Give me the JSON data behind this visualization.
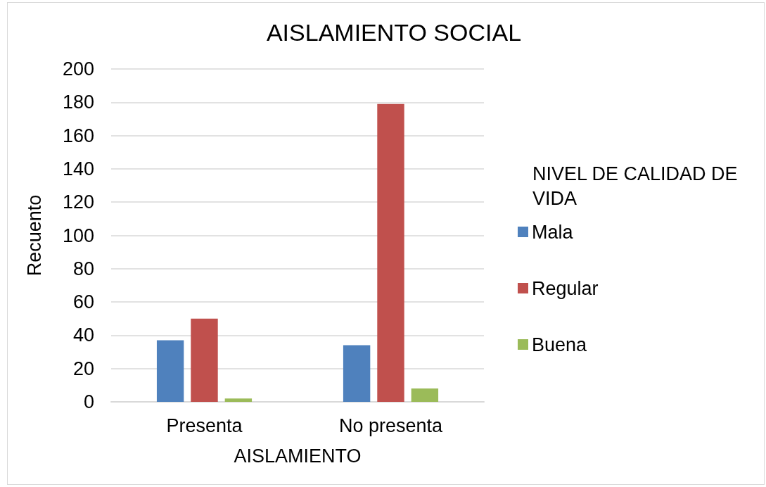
{
  "chart_data": {
    "type": "bar",
    "title": "AISLAMIENTO SOCIAL",
    "xlabel": "AISLAMIENTO",
    "ylabel": "Recuento",
    "legend_title": "NIVEL DE CALIDAD DE VIDA",
    "categories": [
      "Presenta",
      "No presenta"
    ],
    "series": [
      {
        "name": "Mala",
        "color": "#4f81bd",
        "values": [
          37,
          34
        ]
      },
      {
        "name": "Regular",
        "color": "#c0504d",
        "values": [
          50,
          179
        ]
      },
      {
        "name": "Buena",
        "color": "#9bbb59",
        "values": [
          2,
          8
        ]
      }
    ],
    "ylim": [
      0,
      200
    ],
    "yticks": [
      0,
      20,
      40,
      60,
      80,
      100,
      120,
      140,
      160,
      180,
      200
    ],
    "grid": "y",
    "legend": "right"
  }
}
